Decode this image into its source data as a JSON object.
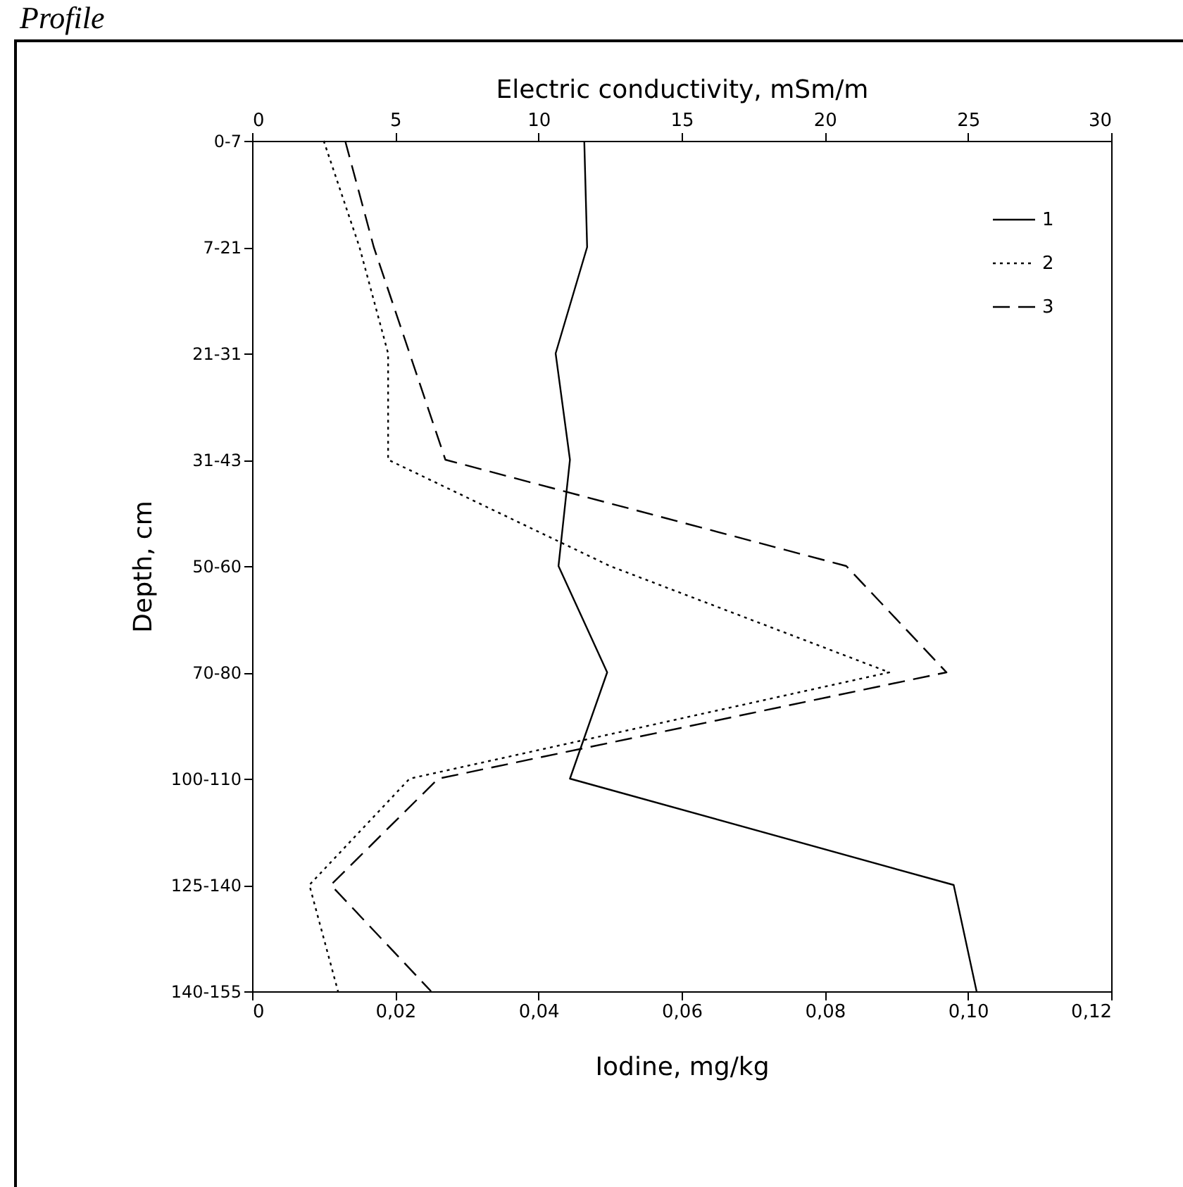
{
  "chart_data": {
    "type": "line",
    "orientation": "horizontal",
    "annotations": [
      "Profile"
    ],
    "x2label": "Electric conductivity, mSm/m",
    "xlabel": "Iodine, mg/kg",
    "ylabel": "Depth, cm",
    "categories": [
      "0-7",
      "7-21",
      "21-31",
      "31-43",
      "50-60",
      "70-80",
      "100-110",
      "125-140",
      "140-155"
    ],
    "xlim": [
      0,
      0.12
    ],
    "xticks": [
      0,
      {
        "value": 0.02,
        "label": "0,02"
      },
      {
        "value": 0.04,
        "label": "0,04"
      },
      {
        "value": 0.06,
        "label": "0,06"
      },
      {
        "value": 0.08,
        "label": "0,08"
      },
      {
        "value": 0.1,
        "label": "0,10"
      },
      {
        "value": 0.12,
        "label": "0,12"
      }
    ],
    "x2lim": [
      0,
      30
    ],
    "x2ticks": [
      0,
      5,
      10,
      15,
      20,
      25,
      30
    ],
    "legend": "top right",
    "grid": false,
    "series": [
      {
        "name": "1",
        "color": "#000000",
        "line_style": "solid",
        "axis": "x2",
        "values": [
          11.6,
          11.7,
          10.6,
          11.1,
          10.7,
          12.4,
          11.1,
          24.5,
          25.3
        ]
      },
      {
        "name": "2",
        "color": "#000000",
        "line_style": "dotted",
        "values": [
          0.01,
          0.015,
          0.019,
          0.019,
          0.05,
          0.089,
          0.022,
          0.008,
          0.012
        ]
      },
      {
        "name": "3",
        "color": "#000000",
        "line_style": "dashed",
        "values": [
          0.013,
          0.017,
          0.022,
          0.027,
          0.083,
          0.097,
          0.026,
          0.011,
          0.025
        ]
      }
    ]
  }
}
